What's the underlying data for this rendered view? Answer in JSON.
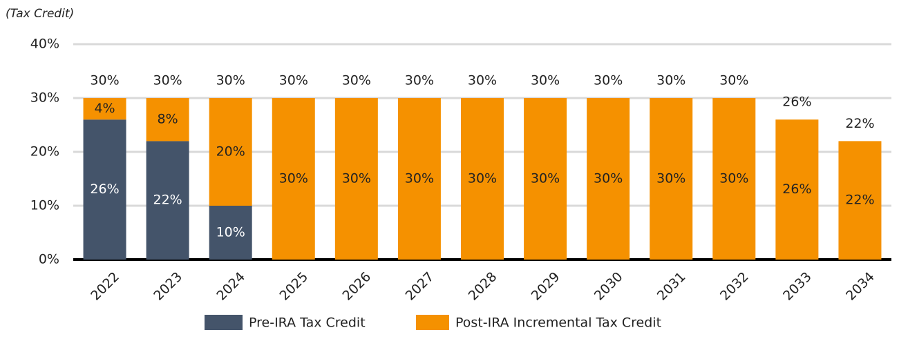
{
  "chart_data": {
    "type": "stacked_bar",
    "y_label": "(Tax Credit)",
    "categories": [
      "2022",
      "2023",
      "2024",
      "2025",
      "2026",
      "2027",
      "2028",
      "2029",
      "2030",
      "2031",
      "2032",
      "2033",
      "2034"
    ],
    "series": [
      {
        "name": "Pre-IRA Tax Credit",
        "color": "#44546a",
        "values": [
          26,
          22,
          10,
          0,
          0,
          0,
          0,
          0,
          0,
          0,
          0,
          0,
          0
        ],
        "value_labels": [
          "26%",
          "22%",
          "10%",
          null,
          null,
          null,
          null,
          null,
          null,
          null,
          null,
          null,
          null
        ]
      },
      {
        "name": "Post-IRA Incremental Tax Credit",
        "color": "#f59100",
        "values": [
          4,
          8,
          20,
          30,
          30,
          30,
          30,
          30,
          30,
          30,
          30,
          26,
          22
        ],
        "value_labels": [
          "4%",
          "8%",
          "20%",
          "30%",
          "30%",
          "30%",
          "30%",
          "30%",
          "30%",
          "30%",
          "30%",
          "26%",
          "22%"
        ]
      }
    ],
    "totals": [
      30,
      30,
      30,
      30,
      30,
      30,
      30,
      30,
      30,
      30,
      30,
      26,
      22
    ],
    "total_labels": [
      "30%",
      "30%",
      "30%",
      "30%",
      "30%",
      "30%",
      "30%",
      "30%",
      "30%",
      "30%",
      "30%",
      "26%",
      "22%"
    ],
    "ylim": [
      0,
      40
    ],
    "yticks": [
      {
        "value": 0,
        "label": "0%"
      },
      {
        "value": 10,
        "label": "10%"
      },
      {
        "value": 20,
        "label": "20%"
      },
      {
        "value": 30,
        "label": "30%"
      },
      {
        "value": 40,
        "label": "40%"
      }
    ],
    "grid": true,
    "legend": "bottom"
  }
}
